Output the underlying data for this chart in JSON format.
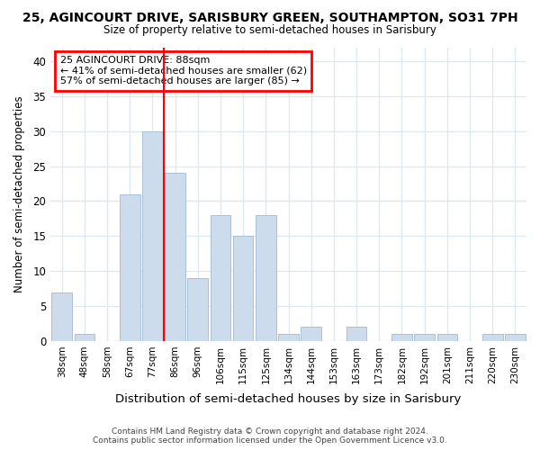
{
  "title": "25, AGINCOURT DRIVE, SARISBURY GREEN, SOUTHAMPTON, SO31 7PH",
  "subtitle": "Size of property relative to semi-detached houses in Sarisbury",
  "xlabel": "Distribution of semi-detached houses by size in Sarisbury",
  "ylabel": "Number of semi-detached properties",
  "categories": [
    "38sqm",
    "48sqm",
    "58sqm",
    "67sqm",
    "77sqm",
    "86sqm",
    "96sqm",
    "106sqm",
    "115sqm",
    "125sqm",
    "134sqm",
    "144sqm",
    "153sqm",
    "163sqm",
    "173sqm",
    "182sqm",
    "192sqm",
    "201sqm",
    "211sqm",
    "220sqm",
    "230sqm"
  ],
  "values": [
    7,
    1,
    0,
    21,
    30,
    24,
    9,
    18,
    15,
    18,
    1,
    2,
    0,
    2,
    0,
    1,
    1,
    1,
    0,
    1,
    1
  ],
  "bar_color": "#ccdcec",
  "bar_edgecolor": "#aac0d8",
  "ylim": [
    0,
    42
  ],
  "yticks": [
    0,
    5,
    10,
    15,
    20,
    25,
    30,
    35,
    40
  ],
  "red_line_x": 4.5,
  "annotation_title": "25 AGINCOURT DRIVE: 88sqm",
  "annotation_line1": "← 41% of semi-detached houses are smaller (62)",
  "annotation_line2": "57% of semi-detached houses are larger (85) →",
  "footer1": "Contains HM Land Registry data © Crown copyright and database right 2024.",
  "footer2": "Contains public sector information licensed under the Open Government Licence v3.0.",
  "background_color": "#ffffff",
  "grid_color": "#dde8f0"
}
